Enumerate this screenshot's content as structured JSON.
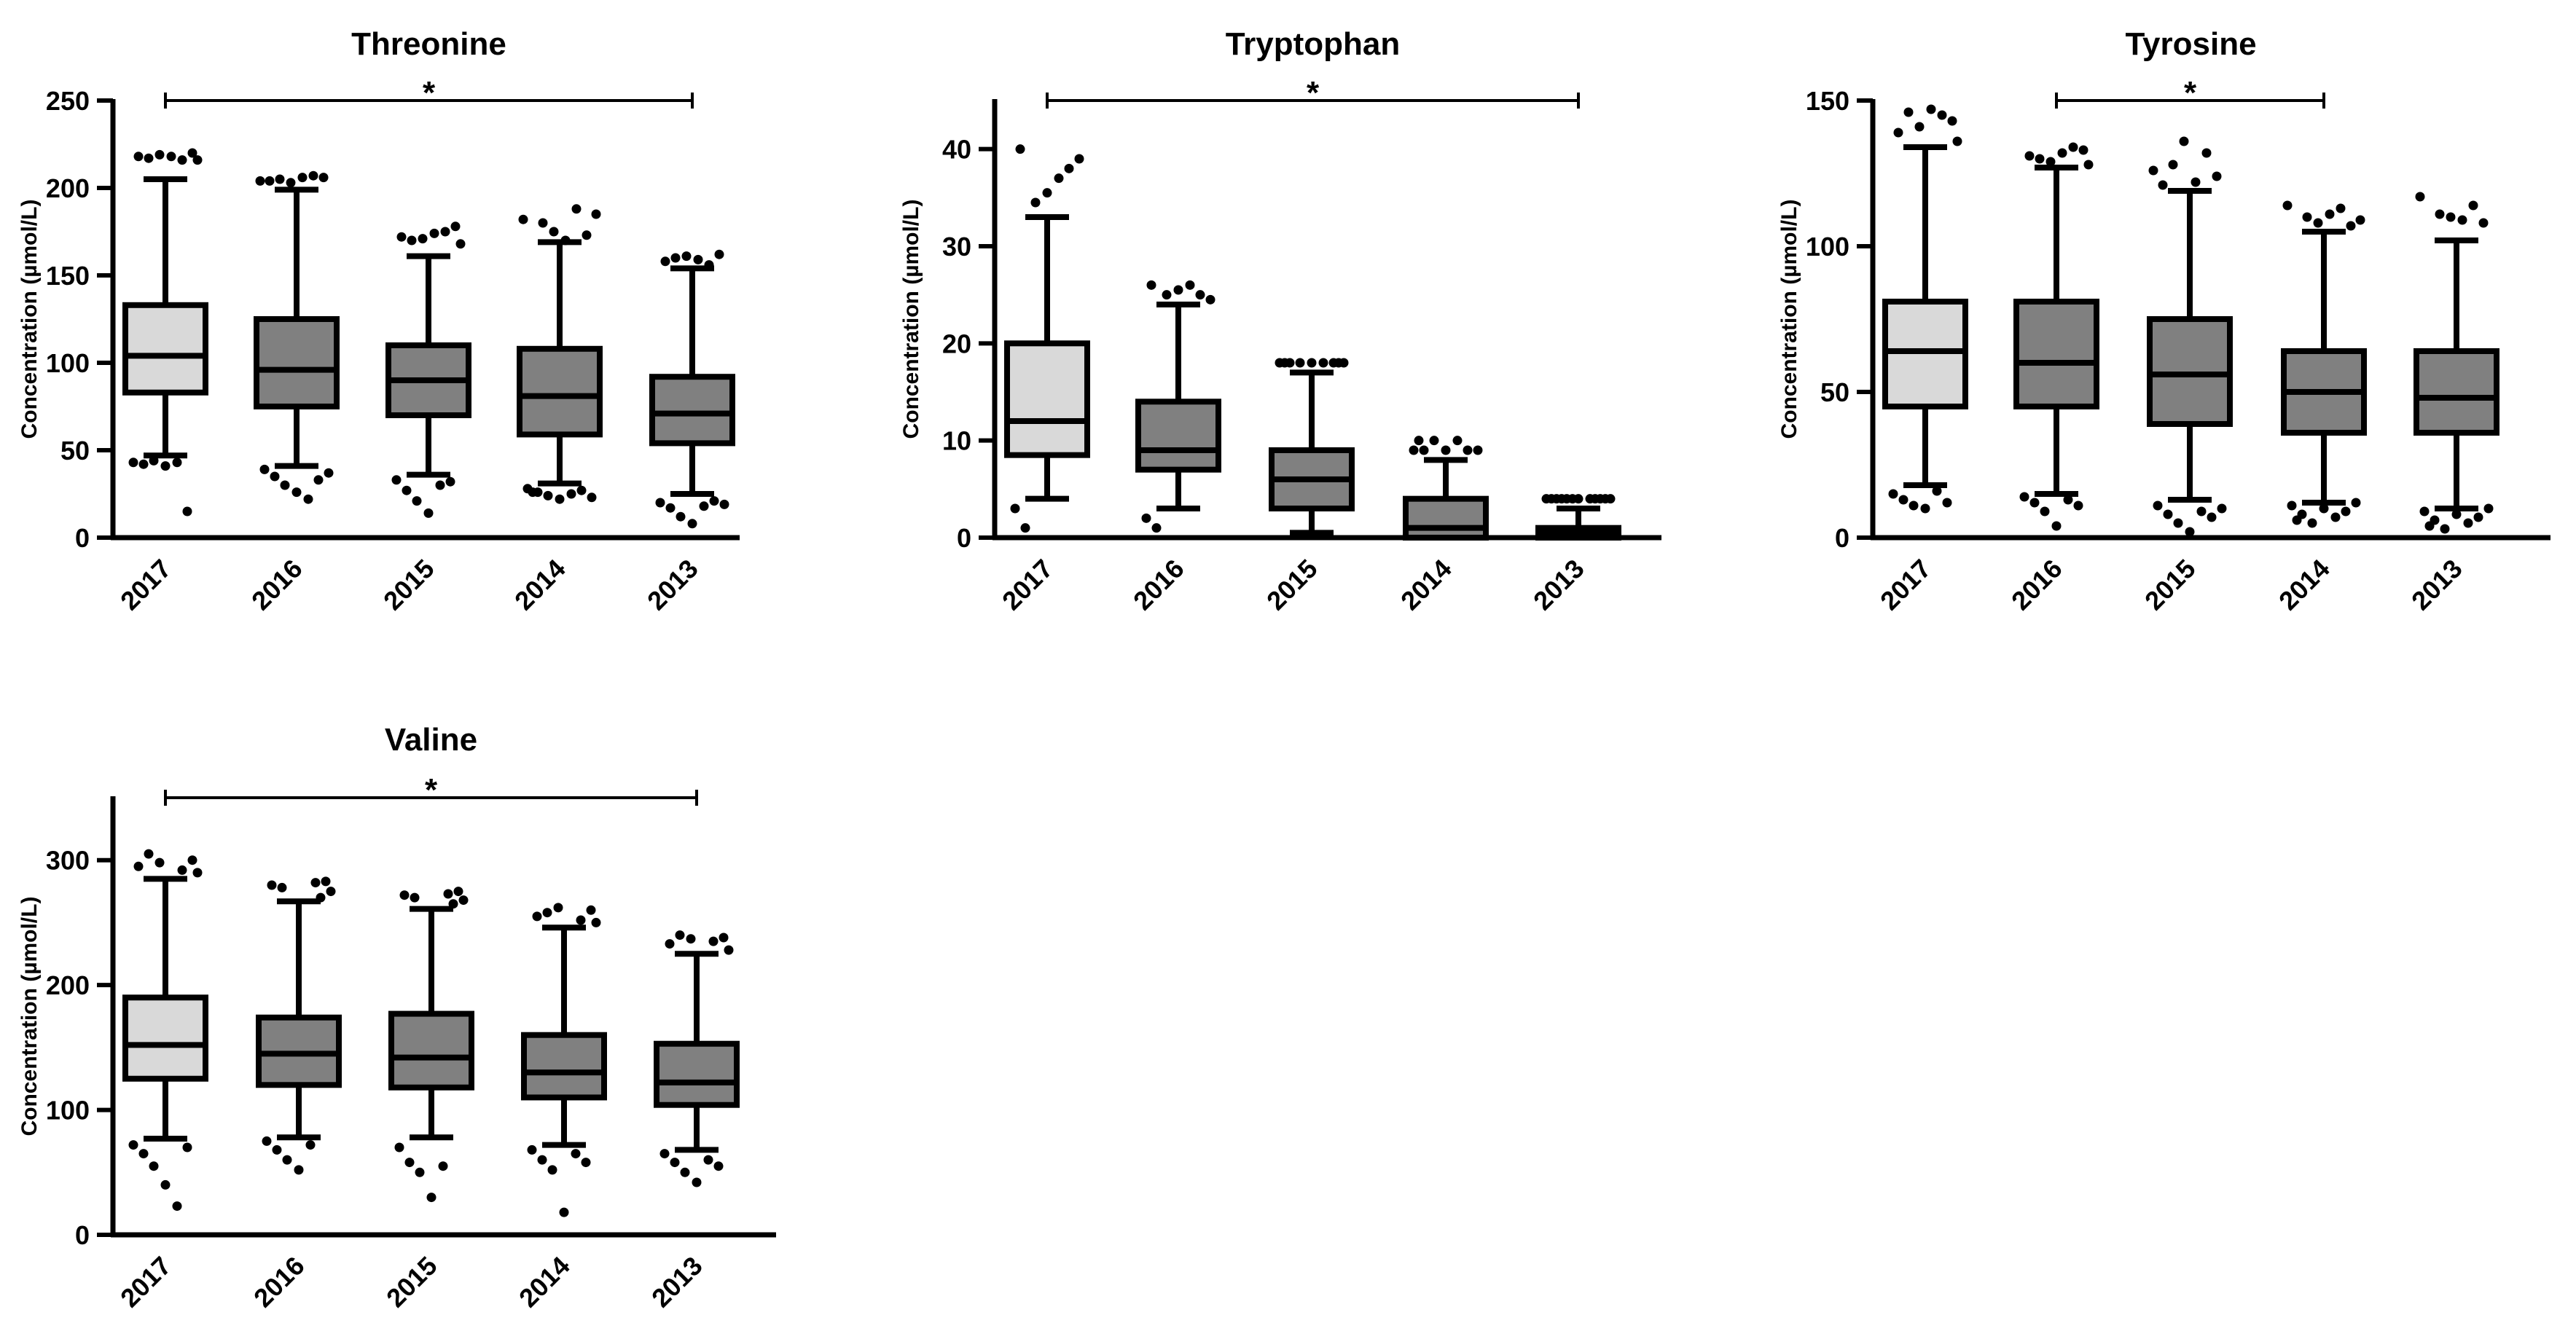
{
  "colors": {
    "ink": "#000000",
    "light_box": "#d9d9d9",
    "dark_box": "#808080",
    "background": "#ffffff"
  },
  "chart_data": [
    {
      "type": "box",
      "title": "Threonine",
      "ylabel": "Concentration (µmol/L)",
      "xlabel": "",
      "ylim": [
        0,
        250
      ],
      "yticks": [
        0,
        50,
        100,
        150,
        200,
        250
      ],
      "categories": [
        "2017",
        "2016",
        "2015",
        "2014",
        "2013"
      ],
      "significance": {
        "from": "2017",
        "to": "2013",
        "label": "*"
      },
      "boxes": [
        {
          "category": "2017",
          "fill": "light",
          "whisker_low": 47,
          "q1": 83,
          "median": 104,
          "q3": 133,
          "whisker_high": 205,
          "outliers": [
            43,
            42,
            44,
            41,
            43,
            15,
            216,
            218,
            220,
            217,
            216,
            219,
            218
          ]
        },
        {
          "category": "2016",
          "fill": "dark",
          "whisker_low": 41,
          "q1": 75,
          "median": 96,
          "q3": 125,
          "whisker_high": 199,
          "outliers": [
            39,
            35,
            30,
            26,
            22,
            33,
            37,
            204,
            206,
            205,
            207,
            203,
            206,
            204
          ]
        },
        {
          "category": "2015",
          "fill": "dark",
          "whisker_low": 36,
          "q1": 70,
          "median": 90,
          "q3": 110,
          "whisker_high": 161,
          "outliers": [
            33,
            27,
            21,
            14,
            30,
            32,
            168,
            172,
            178,
            170,
            175,
            171,
            174
          ]
        },
        {
          "category": "2014",
          "fill": "dark",
          "whisker_low": 31,
          "q1": 59,
          "median": 81,
          "q3": 108,
          "whisker_high": 169,
          "outliers": [
            28,
            26,
            24,
            22,
            25,
            27,
            23,
            26,
            173,
            180,
            188,
            175,
            170,
            182,
            185
          ]
        },
        {
          "category": "2013",
          "fill": "dark",
          "whisker_low": 25,
          "q1": 54,
          "median": 71,
          "q3": 92,
          "whisker_high": 154,
          "outliers": [
            20,
            17,
            12,
            8,
            18,
            21,
            19,
            158,
            162,
            160,
            156,
            161,
            159
          ]
        }
      ]
    },
    {
      "type": "box",
      "title": "Tryptophan",
      "ylabel": "Concentration (µmol/L)",
      "xlabel": "",
      "ylim": [
        0,
        45
      ],
      "yticks": [
        0,
        10,
        20,
        30,
        40
      ],
      "categories": [
        "2017",
        "2016",
        "2015",
        "2014",
        "2013"
      ],
      "significance": {
        "from": "2017",
        "to": "2013",
        "label": "*"
      },
      "boxes": [
        {
          "category": "2017",
          "fill": "light",
          "whisker_low": 4,
          "q1": 8.5,
          "median": 12,
          "q3": 20,
          "whisker_high": 33,
          "outliers": [
            3,
            1,
            34.5,
            35.5,
            37,
            38,
            39,
            40
          ]
        },
        {
          "category": "2016",
          "fill": "dark",
          "whisker_low": 3,
          "q1": 7,
          "median": 9,
          "q3": 14,
          "whisker_high": 24,
          "outliers": [
            2,
            1,
            25,
            25.5,
            26,
            25,
            24.5,
            26
          ]
        },
        {
          "category": "2015",
          "fill": "dark",
          "whisker_low": 0.5,
          "q1": 3,
          "median": 6,
          "q3": 9,
          "whisker_high": 17,
          "outliers": [
            18,
            18,
            18,
            18,
            18,
            18,
            18,
            18,
            18
          ]
        },
        {
          "category": "2014",
          "fill": "dark",
          "whisker_low": 0,
          "q1": 0,
          "median": 1,
          "q3": 4,
          "whisker_high": 8,
          "outliers": [
            9,
            9,
            10,
            9,
            10,
            9,
            9,
            10
          ]
        },
        {
          "category": "2013",
          "fill": "dark",
          "whisker_low": 0,
          "q1": 0,
          "median": 0.5,
          "q3": 1,
          "whisker_high": 3,
          "outliers": [
            4,
            4,
            4,
            4,
            4,
            4,
            4,
            4,
            4,
            4,
            4,
            4
          ]
        }
      ]
    },
    {
      "type": "box",
      "title": "Tyrosine",
      "ylabel": "Concentration (µmol/L)",
      "xlabel": "",
      "ylim": [
        0,
        150
      ],
      "yticks": [
        0,
        50,
        100,
        150
      ],
      "categories": [
        "2017",
        "2016",
        "2015",
        "2014",
        "2013"
      ],
      "significance": {
        "from": "2016",
        "to": "2014",
        "label": "*"
      },
      "boxes": [
        {
          "category": "2017",
          "fill": "light",
          "whisker_low": 18,
          "q1": 45,
          "median": 64,
          "q3": 81,
          "whisker_high": 134,
          "outliers": [
            15,
            13,
            11,
            10,
            16,
            12,
            136,
            139,
            143,
            146,
            145,
            141,
            147
          ]
        },
        {
          "category": "2016",
          "fill": "dark",
          "whisker_low": 15,
          "q1": 45,
          "median": 60,
          "q3": 81,
          "whisker_high": 127,
          "outliers": [
            14,
            12,
            9,
            4,
            13,
            11,
            128,
            131,
            133,
            130,
            134,
            129,
            132
          ]
        },
        {
          "category": "2015",
          "fill": "dark",
          "whisker_low": 13,
          "q1": 39,
          "median": 56,
          "q3": 75,
          "whisker_high": 119,
          "outliers": [
            11,
            8,
            5,
            2,
            9,
            7,
            10,
            121,
            124,
            128,
            132,
            136,
            122,
            126
          ]
        },
        {
          "category": "2014",
          "fill": "dark",
          "whisker_low": 12,
          "q1": 36,
          "median": 50,
          "q3": 64,
          "whisker_high": 105,
          "outliers": [
            11,
            8,
            5,
            10,
            7,
            9,
            12,
            6,
            107,
            110,
            113,
            108,
            111,
            114,
            109
          ]
        },
        {
          "category": "2013",
          "fill": "dark",
          "whisker_low": 10,
          "q1": 36,
          "median": 48,
          "q3": 64,
          "whisker_high": 102,
          "outliers": [
            9,
            6,
            3,
            8,
            5,
            7,
            10,
            4,
            108,
            111,
            114,
            110,
            109,
            117
          ]
        }
      ]
    },
    {
      "type": "box",
      "title": "Valine",
      "ylabel": "Concentration (µmol/L)",
      "xlabel": "",
      "ylim": [
        0,
        350
      ],
      "yticks": [
        0,
        100,
        200,
        300
      ],
      "categories": [
        "2017",
        "2016",
        "2015",
        "2014",
        "2013"
      ],
      "significance": {
        "from": "2017",
        "to": "2013",
        "label": "*"
      },
      "boxes": [
        {
          "category": "2017",
          "fill": "light",
          "whisker_low": 77,
          "q1": 125,
          "median": 152,
          "q3": 190,
          "whisker_high": 285,
          "outliers": [
            72,
            65,
            55,
            40,
            23,
            70,
            290,
            295,
            300,
            305,
            292,
            298
          ]
        },
        {
          "category": "2016",
          "fill": "dark",
          "whisker_low": 78,
          "q1": 120,
          "median": 145,
          "q3": 174,
          "whisker_high": 267,
          "outliers": [
            75,
            68,
            60,
            52,
            72,
            270,
            275,
            280,
            283,
            278,
            282
          ]
        },
        {
          "category": "2015",
          "fill": "dark",
          "whisker_low": 78,
          "q1": 118,
          "median": 142,
          "q3": 177,
          "whisker_high": 261,
          "outliers": [
            70,
            58,
            50,
            30,
            55,
            265,
            268,
            272,
            275,
            270,
            273
          ]
        },
        {
          "category": "2014",
          "fill": "dark",
          "whisker_low": 72,
          "q1": 110,
          "median": 130,
          "q3": 160,
          "whisker_high": 246,
          "outliers": [
            68,
            60,
            52,
            18,
            65,
            58,
            250,
            255,
            260,
            258,
            252,
            262
          ]
        },
        {
          "category": "2013",
          "fill": "dark",
          "whisker_low": 68,
          "q1": 104,
          "median": 122,
          "q3": 153,
          "whisker_high": 225,
          "outliers": [
            65,
            58,
            50,
            42,
            60,
            55,
            228,
            233,
            238,
            240,
            235,
            237
          ]
        }
      ]
    }
  ]
}
